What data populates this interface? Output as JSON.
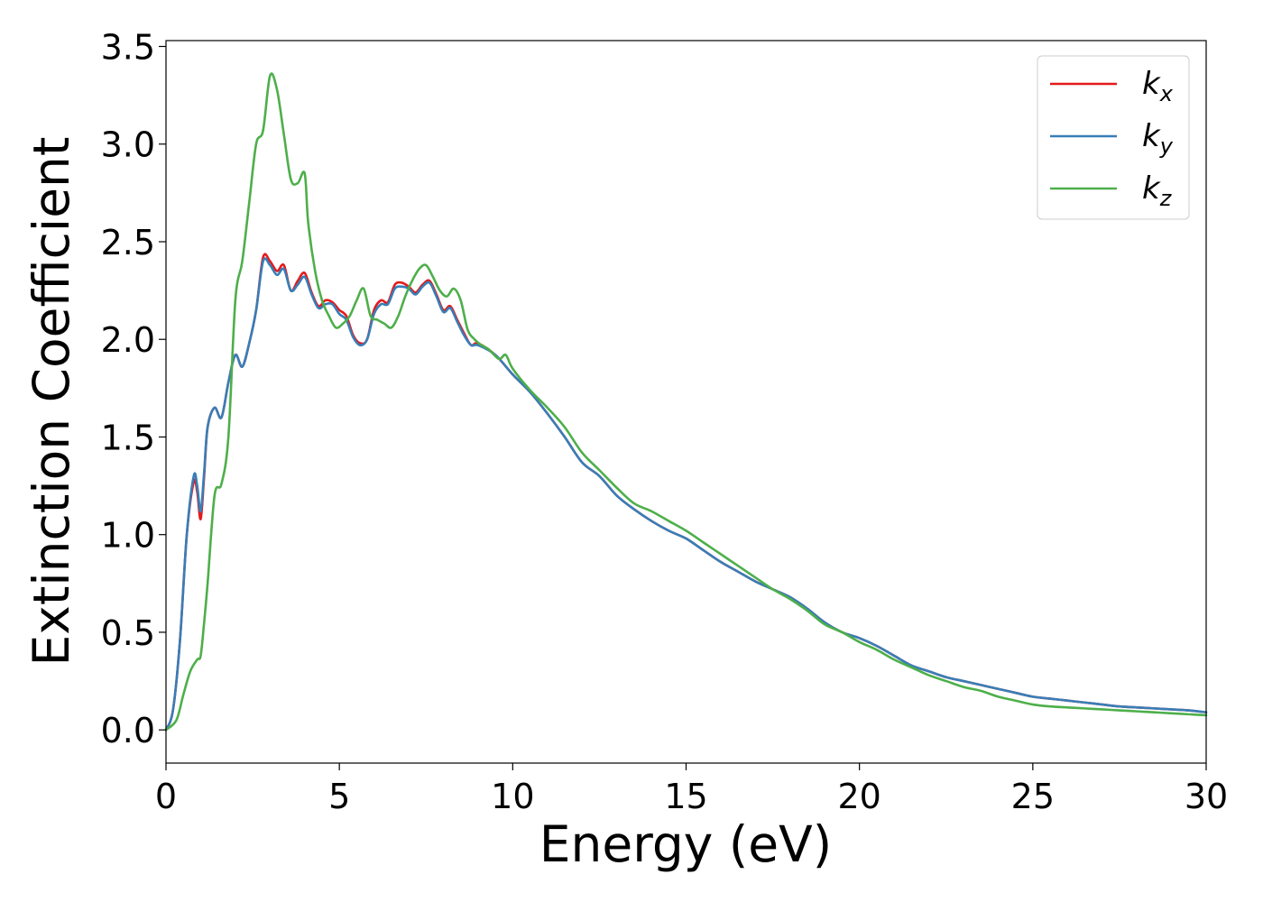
{
  "chart_data": {
    "type": "line",
    "title": "",
    "xlabel": "Energy (eV)",
    "ylabel": "Extinction Coefficient",
    "xlim": [
      0,
      30
    ],
    "ylim": [
      -0.17,
      3.53
    ],
    "xticks": [
      0,
      5,
      10,
      15,
      20,
      25,
      30
    ],
    "xtick_labels": [
      "0",
      "5",
      "10",
      "15",
      "20",
      "25",
      "30"
    ],
    "yticks": [
      0.0,
      0.5,
      1.0,
      1.5,
      2.0,
      2.5,
      3.0,
      3.5
    ],
    "ytick_labels": [
      "0.0",
      "0.5",
      "1.0",
      "1.5",
      "2.0",
      "2.5",
      "3.0",
      "3.5"
    ],
    "grid": false,
    "legend_position": "top-right",
    "series": [
      {
        "name": "kx",
        "label_base": "k",
        "label_sub": "x",
        "color": "#e41a1c",
        "x": [
          0,
          0.2,
          0.4,
          0.6,
          0.8,
          0.9,
          1.0,
          1.1,
          1.2,
          1.4,
          1.6,
          1.8,
          2.0,
          2.2,
          2.4,
          2.6,
          2.8,
          3.0,
          3.2,
          3.4,
          3.6,
          3.8,
          4.0,
          4.2,
          4.4,
          4.6,
          4.8,
          5.0,
          5.2,
          5.4,
          5.6,
          5.8,
          6.0,
          6.2,
          6.4,
          6.6,
          6.8,
          7.0,
          7.2,
          7.4,
          7.6,
          7.8,
          8.0,
          8.2,
          8.4,
          8.6,
          8.8,
          9.0,
          9.5,
          10.0,
          10.5,
          11.0,
          11.5,
          12.0,
          12.5,
          13.0,
          13.5,
          14.0,
          14.5,
          15.0,
          15.5,
          16.0,
          16.5,
          17.0,
          17.5,
          18.0,
          18.5,
          19.0,
          19.5,
          20.0,
          20.5,
          21.0,
          21.5,
          22.0,
          22.5,
          23.0,
          23.5,
          24.0,
          24.5,
          25.0,
          25.5,
          26.0,
          26.5,
          27.0,
          27.5,
          28.0,
          28.5,
          29.0,
          29.5,
          30.0
        ],
        "y": [
          0.0,
          0.1,
          0.45,
          1.0,
          1.27,
          1.22,
          1.08,
          1.3,
          1.55,
          1.65,
          1.6,
          1.78,
          1.92,
          1.86,
          1.98,
          2.15,
          2.42,
          2.4,
          2.35,
          2.38,
          2.25,
          2.3,
          2.34,
          2.24,
          2.17,
          2.2,
          2.19,
          2.15,
          2.12,
          2.02,
          1.98,
          2.0,
          2.15,
          2.2,
          2.19,
          2.28,
          2.29,
          2.27,
          2.24,
          2.28,
          2.3,
          2.23,
          2.15,
          2.17,
          2.1,
          2.03,
          1.97,
          1.98,
          1.92,
          1.82,
          1.73,
          1.62,
          1.5,
          1.37,
          1.3,
          1.2,
          1.13,
          1.07,
          1.02,
          0.98,
          0.92,
          0.86,
          0.81,
          0.76,
          0.72,
          0.68,
          0.62,
          0.55,
          0.5,
          0.47,
          0.43,
          0.38,
          0.33,
          0.3,
          0.27,
          0.25,
          0.23,
          0.21,
          0.19,
          0.17,
          0.16,
          0.15,
          0.14,
          0.13,
          0.12,
          0.115,
          0.11,
          0.105,
          0.1,
          0.09
        ]
      },
      {
        "name": "ky",
        "label_base": "k",
        "label_sub": "y",
        "color": "#377eb8",
        "x": [
          0,
          0.2,
          0.4,
          0.6,
          0.8,
          0.9,
          1.0,
          1.1,
          1.2,
          1.4,
          1.6,
          1.8,
          2.0,
          2.2,
          2.4,
          2.6,
          2.8,
          3.0,
          3.2,
          3.4,
          3.6,
          3.8,
          4.0,
          4.2,
          4.4,
          4.6,
          4.8,
          5.0,
          5.2,
          5.4,
          5.6,
          5.8,
          6.0,
          6.2,
          6.4,
          6.6,
          6.8,
          7.0,
          7.2,
          7.4,
          7.6,
          7.8,
          8.0,
          8.2,
          8.4,
          8.6,
          8.8,
          9.0,
          9.5,
          10.0,
          10.5,
          11.0,
          11.5,
          12.0,
          12.5,
          13.0,
          13.5,
          14.0,
          14.5,
          15.0,
          15.5,
          16.0,
          16.5,
          17.0,
          17.5,
          18.0,
          18.5,
          19.0,
          19.5,
          20.0,
          20.5,
          21.0,
          21.5,
          22.0,
          22.5,
          23.0,
          23.5,
          24.0,
          24.5,
          25.0,
          25.5,
          26.0,
          26.5,
          27.0,
          27.5,
          28.0,
          28.5,
          29.0,
          29.5,
          30.0
        ],
        "y": [
          0.0,
          0.1,
          0.45,
          1.0,
          1.3,
          1.25,
          1.12,
          1.32,
          1.55,
          1.65,
          1.6,
          1.78,
          1.92,
          1.86,
          1.98,
          2.15,
          2.4,
          2.38,
          2.33,
          2.36,
          2.25,
          2.28,
          2.32,
          2.23,
          2.16,
          2.18,
          2.18,
          2.13,
          2.1,
          2.01,
          1.97,
          2.0,
          2.13,
          2.18,
          2.18,
          2.26,
          2.27,
          2.26,
          2.23,
          2.27,
          2.29,
          2.22,
          2.14,
          2.16,
          2.09,
          2.02,
          1.97,
          1.97,
          1.92,
          1.82,
          1.73,
          1.62,
          1.5,
          1.37,
          1.3,
          1.2,
          1.13,
          1.07,
          1.02,
          0.98,
          0.92,
          0.86,
          0.81,
          0.76,
          0.72,
          0.68,
          0.62,
          0.55,
          0.5,
          0.47,
          0.43,
          0.38,
          0.33,
          0.3,
          0.27,
          0.25,
          0.23,
          0.21,
          0.19,
          0.17,
          0.16,
          0.15,
          0.14,
          0.13,
          0.12,
          0.115,
          0.11,
          0.105,
          0.1,
          0.09
        ]
      },
      {
        "name": "kz",
        "label_base": "k",
        "label_sub": "z",
        "color": "#4daf4a",
        "x": [
          0,
          0.3,
          0.5,
          0.7,
          0.9,
          1.0,
          1.1,
          1.2,
          1.4,
          1.6,
          1.8,
          2.0,
          2.2,
          2.4,
          2.6,
          2.8,
          3.0,
          3.2,
          3.4,
          3.6,
          3.8,
          4.0,
          4.1,
          4.3,
          4.5,
          4.7,
          4.9,
          5.1,
          5.3,
          5.5,
          5.7,
          5.9,
          6.1,
          6.3,
          6.5,
          6.7,
          6.9,
          7.1,
          7.3,
          7.5,
          7.7,
          7.9,
          8.1,
          8.3,
          8.5,
          8.7,
          8.9,
          9.1,
          9.3,
          9.6,
          9.8,
          10.0,
          10.5,
          11.0,
          11.5,
          12.0,
          12.5,
          13.0,
          13.5,
          14.0,
          14.5,
          15.0,
          15.5,
          16.0,
          16.5,
          17.0,
          17.5,
          18.0,
          18.5,
          19.0,
          19.5,
          20.0,
          20.5,
          21.0,
          21.5,
          22.0,
          22.5,
          23.0,
          23.5,
          24.0,
          24.5,
          25.0,
          25.5,
          26.0,
          26.5,
          27.0,
          27.5,
          28.0,
          28.5,
          29.0,
          29.5,
          30.0
        ],
        "y": [
          0.0,
          0.05,
          0.18,
          0.3,
          0.36,
          0.38,
          0.55,
          0.75,
          1.2,
          1.26,
          1.5,
          2.2,
          2.4,
          2.7,
          3.0,
          3.07,
          3.35,
          3.28,
          3.05,
          2.82,
          2.8,
          2.85,
          2.6,
          2.35,
          2.2,
          2.12,
          2.06,
          2.08,
          2.12,
          2.2,
          2.26,
          2.12,
          2.1,
          2.08,
          2.06,
          2.12,
          2.22,
          2.3,
          2.36,
          2.38,
          2.32,
          2.25,
          2.22,
          2.26,
          2.2,
          2.05,
          2.0,
          1.97,
          1.95,
          1.9,
          1.92,
          1.85,
          1.74,
          1.65,
          1.55,
          1.42,
          1.33,
          1.24,
          1.16,
          1.12,
          1.07,
          1.02,
          0.96,
          0.9,
          0.84,
          0.78,
          0.72,
          0.67,
          0.61,
          0.54,
          0.5,
          0.45,
          0.41,
          0.36,
          0.32,
          0.28,
          0.25,
          0.22,
          0.2,
          0.17,
          0.15,
          0.13,
          0.12,
          0.115,
          0.11,
          0.105,
          0.1,
          0.095,
          0.09,
          0.085,
          0.08,
          0.075
        ]
      }
    ]
  }
}
